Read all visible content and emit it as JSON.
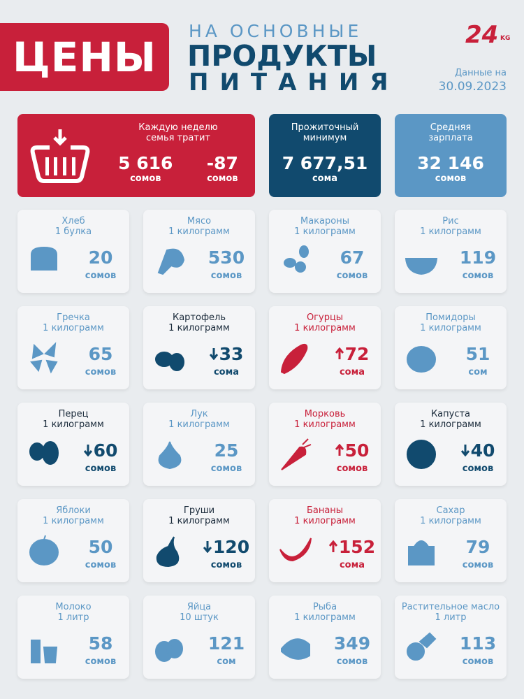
{
  "header": {
    "badge": "ЦЕНЫ",
    "title_lines": [
      "НА ОСНОВНЫЕ",
      "ПРОДУКТЫ",
      "ПИТАНИЯ"
    ],
    "logo": "24",
    "logo_suffix": "KG",
    "date_label": "Данные на",
    "date": "30.09.2023"
  },
  "summary": {
    "weekly": {
      "label_lines": [
        "Каждую неделю",
        "семья тратит"
      ],
      "amounts": [
        {
          "value": "5 616",
          "unit": "сомов"
        },
        {
          "value": "-87",
          "unit": "сомов"
        }
      ]
    },
    "minimum": {
      "label_lines": [
        "Прожиточный",
        "минимум"
      ],
      "value": "7 677,51",
      "unit": "сома"
    },
    "salary": {
      "label_lines": [
        "Средняя",
        "зарплата"
      ],
      "value": "32 146",
      "unit": "сомов"
    }
  },
  "items": [
    {
      "name": "Хлеб",
      "unit": "1 булка",
      "price": "20",
      "currency": "сомов",
      "trend": "none"
    },
    {
      "name": "Мясо",
      "unit": "1 килограмм",
      "price": "530",
      "currency": "сомов",
      "trend": "none"
    },
    {
      "name": "Макароны",
      "unit": "1 килограмм",
      "price": "67",
      "currency": "сомов",
      "trend": "none"
    },
    {
      "name": "Рис",
      "unit": "1 килограмм",
      "price": "119",
      "currency": "сомов",
      "trend": "none"
    },
    {
      "name": "Гречка",
      "unit": "1 килограмм",
      "price": "65",
      "currency": "сомов",
      "trend": "none"
    },
    {
      "name": "Картофель",
      "unit": "1 килограмм",
      "price": "33",
      "currency": "сома",
      "trend": "down"
    },
    {
      "name": "Огурцы",
      "unit": "1 килограмм",
      "price": "72",
      "currency": "сома",
      "trend": "up"
    },
    {
      "name": "Помидоры",
      "unit": "1 килограмм",
      "price": "51",
      "currency": "сом",
      "trend": "none"
    },
    {
      "name": "Перец",
      "unit": "1 килограмм",
      "price": "60",
      "currency": "сомов",
      "trend": "down"
    },
    {
      "name": "Лук",
      "unit": "1 килограмм",
      "price": "25",
      "currency": "сомов",
      "trend": "none"
    },
    {
      "name": "Морковь",
      "unit": "1 килограмм",
      "price": "50",
      "currency": "сомов",
      "trend": "up"
    },
    {
      "name": "Капуста",
      "unit": "1 килограмм",
      "price": "40",
      "currency": "сомов",
      "trend": "down"
    },
    {
      "name": "Яблоки",
      "unit": "1 килограмм",
      "price": "50",
      "currency": "сомов",
      "trend": "none"
    },
    {
      "name": "Груши",
      "unit": "1 килограмм",
      "price": "120",
      "currency": "сомов",
      "trend": "down"
    },
    {
      "name": "Бананы",
      "unit": "1 килограмм",
      "price": "152",
      "currency": "сома",
      "trend": "up"
    },
    {
      "name": "Сахар",
      "unit": "1 килограмм",
      "price": "79",
      "currency": "сомов",
      "trend": "none"
    },
    {
      "name": "Молоко",
      "unit": "1 литр",
      "price": "58",
      "currency": "сомов",
      "trend": "none"
    },
    {
      "name": "Яйца",
      "unit": "10 штук",
      "price": "121",
      "currency": "сом",
      "trend": "none"
    },
    {
      "name": "Рыба",
      "unit": "1 килограмм",
      "price": "349",
      "currency": "сомов",
      "trend": "none"
    },
    {
      "name": "Растительное масло",
      "unit": "1 литр",
      "price": "113",
      "currency": "сомов",
      "trend": "none"
    }
  ]
}
